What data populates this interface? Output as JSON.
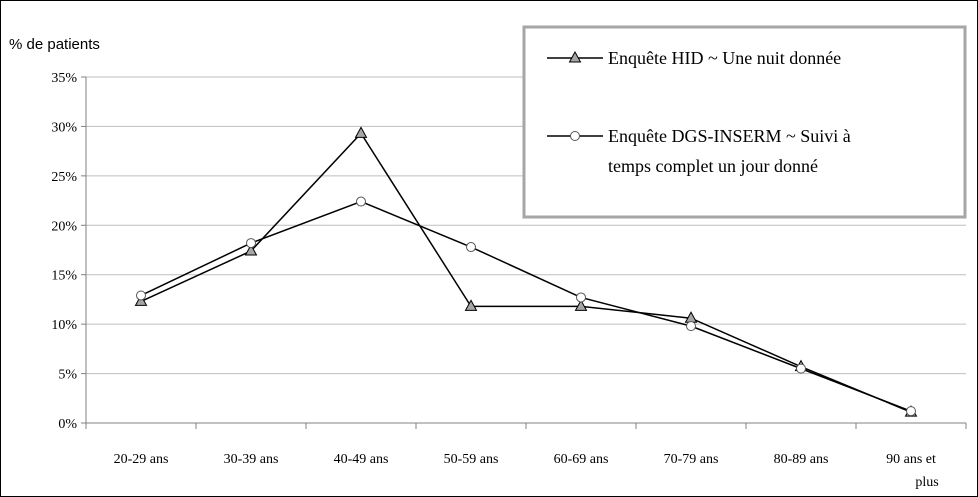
{
  "chart_data": {
    "type": "line",
    "ylabel": "% de patients",
    "xlabel": "",
    "ylim": [
      0,
      35
    ],
    "yticks": [
      0,
      5,
      10,
      15,
      20,
      25,
      30,
      35
    ],
    "ytick_labels": [
      "0%",
      "5%",
      "10%",
      "15%",
      "20%",
      "25%",
      "30%",
      "35%"
    ],
    "grid": "horizontal",
    "legend_position": "top-right",
    "categories": [
      [
        "20-29 ans"
      ],
      [
        "30-39 ans"
      ],
      [
        "40-49 ans"
      ],
      [
        "50-59 ans"
      ],
      [
        "60-69 ans"
      ],
      [
        "70-79 ans"
      ],
      [
        "80-89 ans"
      ],
      [
        "90 ans et",
        "plus"
      ]
    ],
    "series": [
      {
        "name": "Enquête HID ~ Une nuit donnée",
        "name_lines": [
          "Enquête HID ~ Une nuit donnée"
        ],
        "marker": "triangle",
        "color": "#000000",
        "marker_fill": "#a6a6a6",
        "values": [
          12.3,
          17.4,
          29.3,
          11.8,
          11.8,
          10.6,
          5.7,
          1.1
        ]
      },
      {
        "name": "Enquête DGS-INSERM ~ Suivi à temps complet un jour donné",
        "name_lines": [
          "Enquête DGS-INSERM ~ Suivi à",
          "temps complet un jour donné"
        ],
        "marker": "circle",
        "color": "#000000",
        "marker_fill": "#ffffff",
        "values": [
          12.9,
          18.2,
          22.4,
          17.8,
          12.7,
          9.8,
          5.5,
          1.2
        ]
      }
    ]
  }
}
